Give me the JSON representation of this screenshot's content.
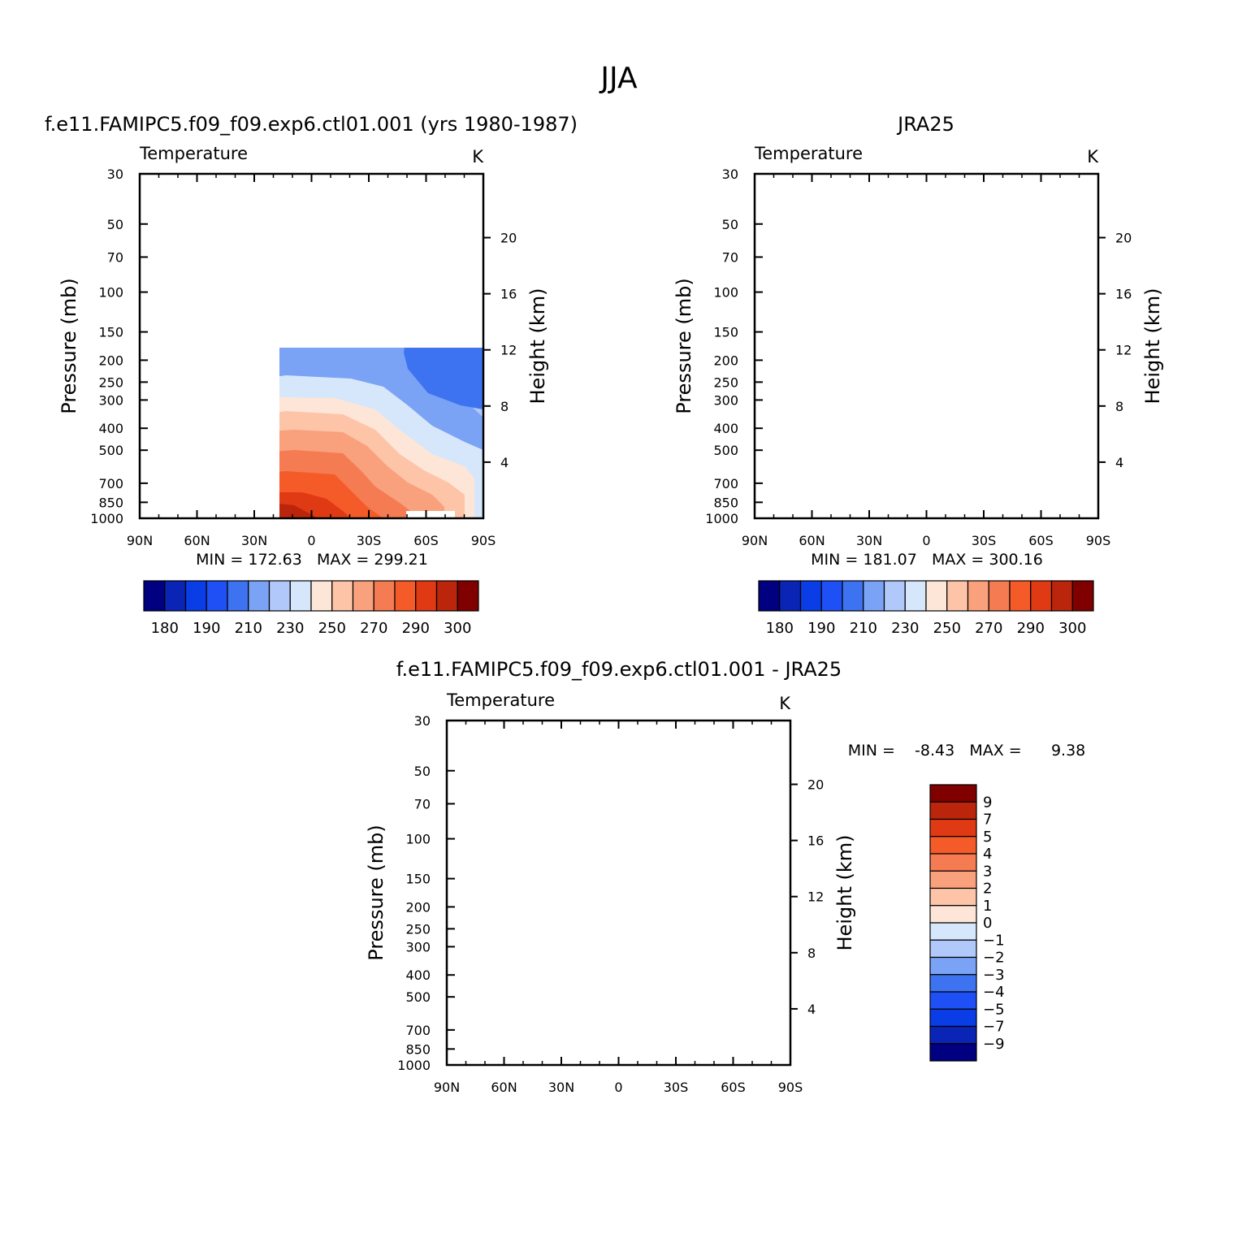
{
  "figure": {
    "title": "JJA"
  },
  "colors": {
    "abs_levels": [
      "#000080",
      "#0a24b5",
      "#0a3de6",
      "#1e50f5",
      "#3d73f0",
      "#7aa2f5",
      "#b0c8fa",
      "#d6e6fb",
      "#fde6d8",
      "#fdc4a8",
      "#f9a07c",
      "#f57b52",
      "#f55b28",
      "#e03a14",
      "#bb250b",
      "#800000"
    ],
    "diff_levels": [
      "#000080",
      "#0a24b5",
      "#0a3de6",
      "#1e50f5",
      "#3d73f0",
      "#7aa2f5",
      "#b0c8fa",
      "#d6e6fb",
      "#fde6d8",
      "#fdc4a8",
      "#f9a07c",
      "#f57b52",
      "#f55b28",
      "#e03a14",
      "#bb250b",
      "#800000"
    ]
  },
  "chart_data": [
    {
      "type": "heatmap",
      "panel_title": "f.e11.FAMIPC5.f09_f09.exp6.ctl01.001 (yrs 1980-1987)",
      "subtitle_left": "Temperature",
      "subtitle_right": "K",
      "xlabel": "",
      "ylabel": "Pressure (mb)",
      "ylabel_right": "Height (km)",
      "x_ticks": [
        "90N",
        "60N",
        "30N",
        "0",
        "30S",
        "60S",
        "90S"
      ],
      "y_ticks": [
        "30",
        "50",
        "70",
        "100",
        "150",
        "200",
        "250",
        "300",
        "400",
        "500",
        "700",
        "850",
        "1000"
      ],
      "y_right_ticks": [
        "20",
        "16",
        "12",
        "8",
        "4"
      ],
      "stats": "MIN = 172.63   MAX = 299.21",
      "colorbar_labels": [
        "180",
        "190",
        "210",
        "230",
        "250",
        "270",
        "290",
        "300"
      ],
      "min": 172.63,
      "max": 299.21
    },
    {
      "type": "heatmap",
      "panel_title": "JRA25",
      "subtitle_left": "Temperature",
      "subtitle_right": "K",
      "xlabel": "",
      "ylabel": "Pressure (mb)",
      "ylabel_right": "Height (km)",
      "x_ticks": [
        "90N",
        "60N",
        "30N",
        "0",
        "30S",
        "60S",
        "90S"
      ],
      "y_ticks": [
        "30",
        "50",
        "70",
        "100",
        "150",
        "200",
        "250",
        "300",
        "400",
        "500",
        "700",
        "850",
        "1000"
      ],
      "y_right_ticks": [
        "20",
        "16",
        "12",
        "8",
        "4"
      ],
      "stats": "MIN = 181.07   MAX = 300.16",
      "colorbar_labels": [
        "180",
        "190",
        "210",
        "230",
        "250",
        "270",
        "290",
        "300"
      ],
      "min": 181.07,
      "max": 300.16
    },
    {
      "type": "heatmap",
      "panel_title": "f.e11.FAMIPC5.f09_f09.exp6.ctl01.001 - JRA25",
      "subtitle_left": "Temperature",
      "subtitle_right": "K",
      "xlabel": "",
      "ylabel": "Pressure (mb)",
      "ylabel_right": "Height (km)",
      "x_ticks": [
        "90N",
        "60N",
        "30N",
        "0",
        "30S",
        "60S",
        "90S"
      ],
      "y_ticks": [
        "30",
        "50",
        "70",
        "100",
        "150",
        "200",
        "250",
        "300",
        "400",
        "500",
        "700",
        "850",
        "1000"
      ],
      "y_right_ticks": [
        "20",
        "16",
        "12",
        "8",
        "4"
      ],
      "stats": "MIN =    -8.43   MAX =      9.38",
      "colorbar_labels": [
        "9",
        "7",
        "5",
        "4",
        "3",
        "2",
        "1",
        "0",
        "-1",
        "-2",
        "-3",
        "-4",
        "-5",
        "-7",
        "-9"
      ],
      "min": -8.43,
      "max": 9.38
    }
  ]
}
